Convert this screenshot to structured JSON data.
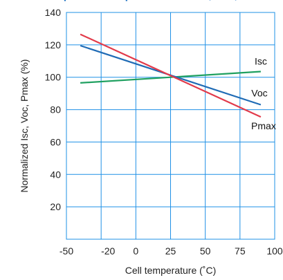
{
  "header_fragment": "Temperature Dependence of Isc, Voc, Pmax",
  "chart_data": {
    "type": "line",
    "title": "",
    "xlabel": "Cell temperature (˚C)",
    "ylabel": "Normalized Isc, Voc, Pmax (%)",
    "xlim": [
      -50,
      100
    ],
    "ylim": [
      0,
      140
    ],
    "x_ticks": [
      "-50",
      "-20",
      "0",
      "25",
      "50",
      "75",
      "100"
    ],
    "x_tick_values": [
      -50,
      -20,
      0,
      25,
      50,
      75,
      100
    ],
    "x_grid_values": [
      -25,
      0,
      25,
      50,
      75
    ],
    "y_ticks": [
      "20",
      "40",
      "60",
      "80",
      "100",
      "120",
      "140"
    ],
    "y_tick_values": [
      20,
      40,
      60,
      80,
      100,
      120,
      140
    ],
    "grid": true,
    "series": [
      {
        "name": "Isc",
        "color": "#1fa060",
        "x": [
          -40,
          90
        ],
        "y": [
          96.5,
          103.5
        ]
      },
      {
        "name": "Voc",
        "color": "#1f6bb5",
        "x": [
          -40,
          90
        ],
        "y": [
          119.5,
          83
        ]
      },
      {
        "name": "Pmax",
        "color": "#e23a4a",
        "x": [
          -40,
          90
        ],
        "y": [
          126.5,
          75.5
        ]
      }
    ]
  }
}
